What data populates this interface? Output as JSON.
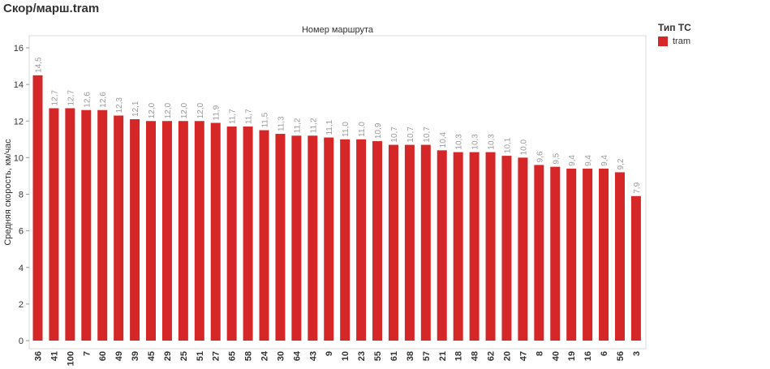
{
  "title": "Скор/марш.tram",
  "legend": {
    "title": "Тип ТС",
    "items": [
      {
        "label": "tram",
        "color": "#d62728"
      }
    ]
  },
  "chart_data": {
    "type": "bar",
    "title": "Номер маршрута",
    "xlabel": "",
    "ylabel": "Средняя скорость, км/час",
    "ylim": [
      0,
      17
    ],
    "yticks": [
      0,
      2,
      4,
      6,
      8,
      10,
      12,
      14,
      16
    ],
    "grid": false,
    "bar_color": "#d62728",
    "categories": [
      "36",
      "41",
      "100",
      "7",
      "60",
      "49",
      "39",
      "45",
      "29",
      "25",
      "51",
      "27",
      "65",
      "58",
      "24",
      "30",
      "64",
      "43",
      "9",
      "10",
      "23",
      "55",
      "61",
      "38",
      "57",
      "21",
      "18",
      "48",
      "62",
      "20",
      "47",
      "8",
      "40",
      "19",
      "16",
      "6",
      "56",
      "3"
    ],
    "values": [
      14.5,
      12.7,
      12.7,
      12.6,
      12.6,
      12.3,
      12.1,
      12.0,
      12.0,
      12.0,
      12.0,
      11.9,
      11.7,
      11.7,
      11.5,
      11.3,
      11.2,
      11.2,
      11.1,
      11.0,
      11.0,
      10.9,
      10.7,
      10.7,
      10.7,
      10.4,
      10.3,
      10.3,
      10.3,
      10.1,
      10.0,
      9.6,
      9.5,
      9.4,
      9.4,
      9.4,
      9.2,
      7.9
    ],
    "data_labels": [
      "14,5",
      "12,7",
      "12,7",
      "12,6",
      "12,6",
      "12,3",
      "12,1",
      "12,0",
      "12,0",
      "12,0",
      "12,0",
      "11,9",
      "11,7",
      "11,7",
      "11,5",
      "11,3",
      "11,2",
      "11,2",
      "11,1",
      "11,0",
      "11,0",
      "10,9",
      "10,7",
      "10,7",
      "10,7",
      "10,4",
      "10,3",
      "10,3",
      "10,3",
      "10,1",
      "10,0",
      "9,6",
      "9,5",
      "9,4",
      "9,4",
      "9,4",
      "9,2",
      "7,9"
    ]
  }
}
